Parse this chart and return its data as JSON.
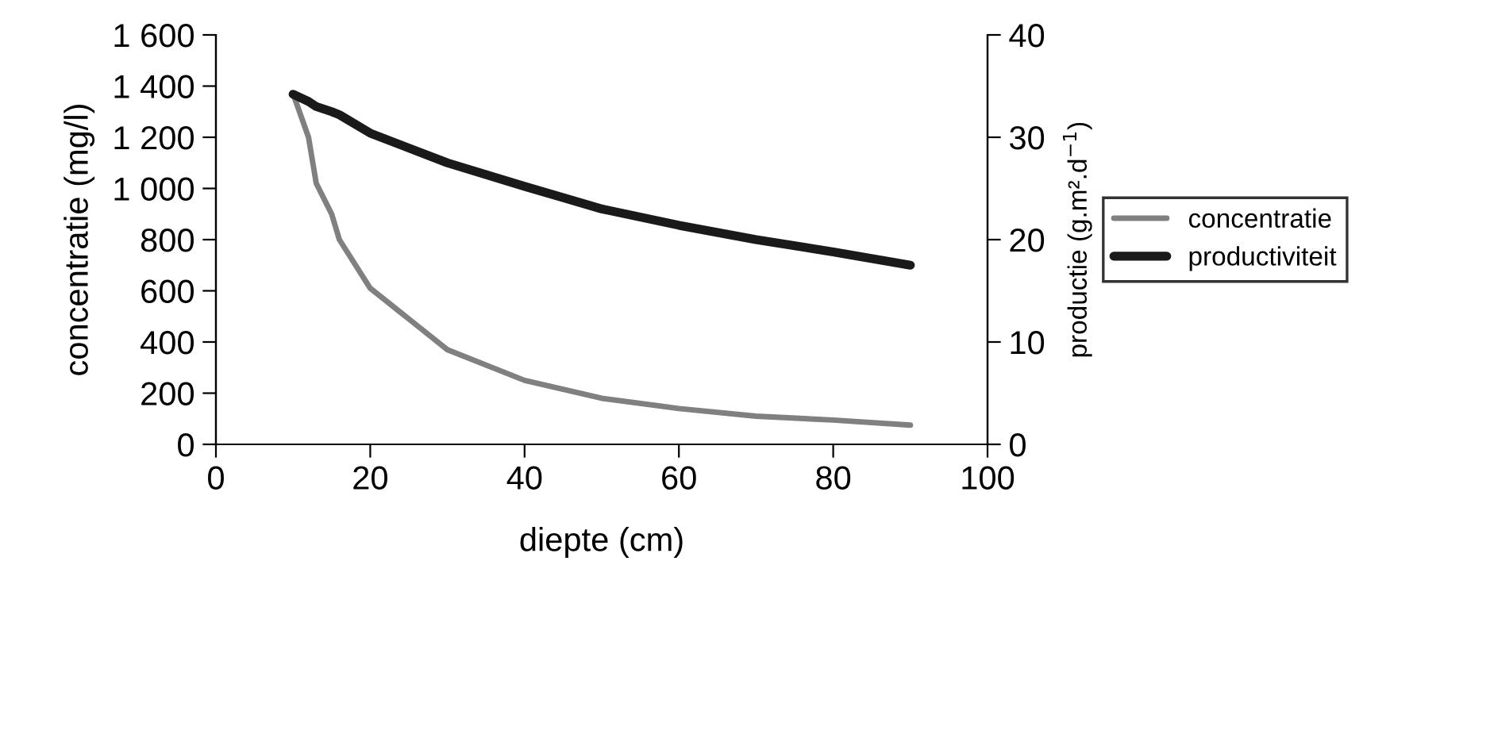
{
  "chart_data": {
    "type": "line",
    "xlabel": "diepte (cm)",
    "ylabel": "concentratie (mg/l)",
    "y2label": "productie (g.m².d$^{−1}$)",
    "x": [
      10,
      12,
      13,
      15,
      16,
      20,
      30,
      40,
      50,
      60,
      70,
      80,
      90
    ],
    "series": [
      {
        "name": "concentratie",
        "color": "#808080",
        "values": [
          1370,
          1200,
          1020,
          900,
          800,
          610,
          370,
          250,
          180,
          140,
          110,
          95,
          75
        ]
      },
      {
        "name": "productiviteit",
        "color": "#1a1a1a",
        "axis": "y2",
        "values": [
          34.2,
          33.5,
          33.0,
          32.5,
          32.2,
          30.4,
          27.5,
          25.2,
          23.0,
          21.4,
          20.0,
          18.8,
          17.5
        ]
      }
    ],
    "xlim": [
      0,
      100
    ],
    "xticks": [
      0,
      20,
      40,
      60,
      80,
      100
    ],
    "ylim": [
      0,
      1600
    ],
    "yticks": [
      0,
      200,
      400,
      600,
      800,
      {
        "value": 1000,
        "label": "1 000"
      },
      {
        "value": 1200,
        "label": "1 200"
      },
      {
        "value": 1400,
        "label": "1 400"
      },
      {
        "value": 1600,
        "label": "1 600"
      }
    ],
    "y2lim": [
      0,
      40
    ],
    "y2ticks": [
      0,
      10,
      20,
      30,
      40
    ],
    "grid": false,
    "legend": "right",
    "marker": "none",
    "line_style": "solid"
  }
}
